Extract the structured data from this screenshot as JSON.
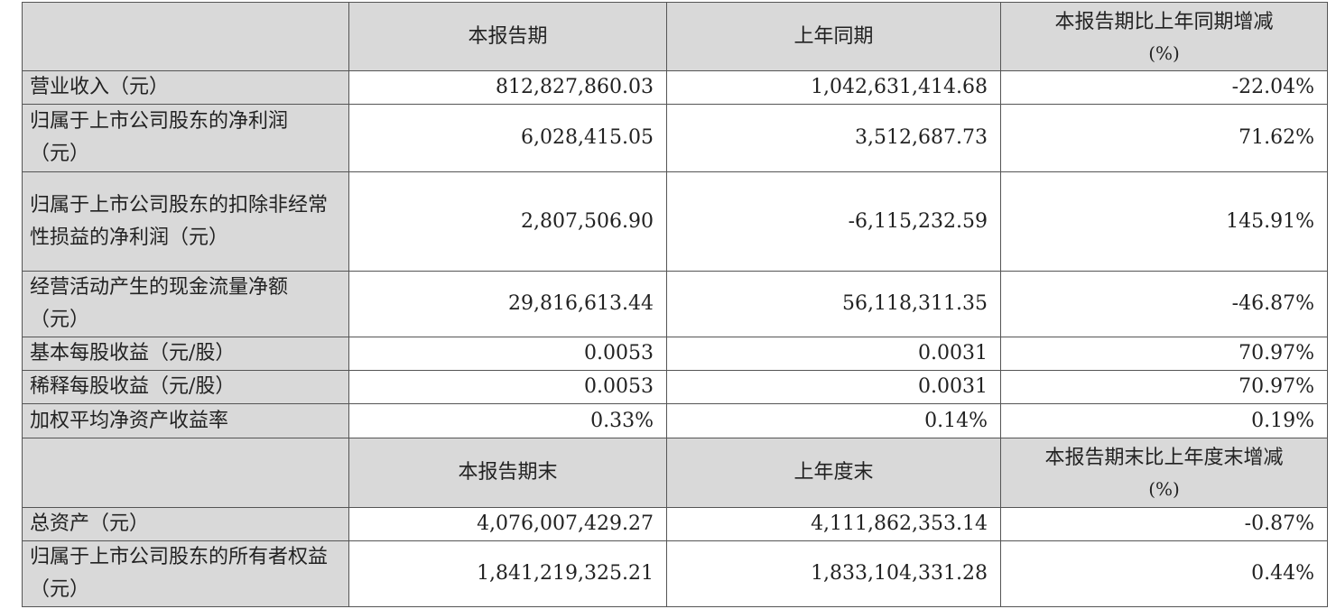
{
  "header1": {
    "col1": "",
    "col2": "本报告期",
    "col3": "上年同期",
    "col4": "本报告期比上年同期增减",
    "col4_unit": "(%)"
  },
  "rows1": [
    {
      "label": "营业收入（元）",
      "current": "812,827,860.03",
      "prior": "1,042,631,414.68",
      "change": "-22.04%"
    },
    {
      "label": "归属于上市公司股东的净利润（元）",
      "current": "6,028,415.05",
      "prior": "3,512,687.73",
      "change": "71.62%"
    },
    {
      "label": "归属于上市公司股东的扣除非经常性损益的净利润（元）",
      "current": "2,807,506.90",
      "prior": "-6,115,232.59",
      "change": "145.91%"
    },
    {
      "label": "经营活动产生的现金流量净额（元）",
      "current": "29,816,613.44",
      "prior": "56,118,311.35",
      "change": "-46.87%"
    },
    {
      "label": "基本每股收益（元/股）",
      "current": "0.0053",
      "prior": "0.0031",
      "change": "70.97%"
    },
    {
      "label": "稀释每股收益（元/股）",
      "current": "0.0053",
      "prior": "0.0031",
      "change": "70.97%"
    },
    {
      "label": "加权平均净资产收益率",
      "current": "0.33%",
      "prior": "0.14%",
      "change": "0.19%"
    }
  ],
  "header2": {
    "col1": "",
    "col2": "本报告期末",
    "col3": "上年度末",
    "col4": "本报告期末比上年度末增减",
    "col4_unit": "(%)"
  },
  "rows2": [
    {
      "label": "总资产（元）",
      "current": "4,076,007,429.27",
      "prior": "4,111,862,353.14",
      "change": "-0.87%"
    },
    {
      "label": "归属于上市公司股东的所有者权益（元）",
      "current": "1,841,219,325.21",
      "prior": "1,833,104,331.28",
      "change": "0.44%"
    }
  ]
}
